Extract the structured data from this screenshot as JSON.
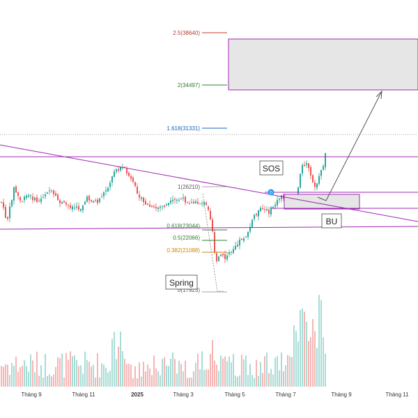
{
  "chart_data": {
    "type": "candlestick",
    "x_axis": {
      "ticks": [
        "Tháng 9",
        "Tháng 11",
        "2025",
        "Tháng 3",
        "Tháng 5",
        "Tháng 7",
        "Tháng 9",
        "Tháng 11"
      ]
    },
    "y_range": [
      16000,
      44000
    ],
    "fibonacci": [
      {
        "label": "2.5(38640)",
        "value": 38640
      },
      {
        "label": "2(34497)",
        "value": 34497
      },
      {
        "label": "1.618(31331)",
        "value": 31331
      },
      {
        "label": "1(26210)",
        "value": 26210
      },
      {
        "label": "0.618(23044)",
        "value": 23044
      },
      {
        "label": "0.5(22066)",
        "value": 22066
      },
      {
        "label": "0.382(21088)",
        "value": 21088
      },
      {
        "label": "0(17923)",
        "value": 17923
      }
    ],
    "annotations": [
      {
        "text": "SOS"
      },
      {
        "text": "BU"
      },
      {
        "text": "Spring"
      }
    ],
    "colors": {
      "up": "#26a69a",
      "down": "#ef5350",
      "line": "#9c27b0",
      "zone": "#e0e0e0"
    }
  }
}
